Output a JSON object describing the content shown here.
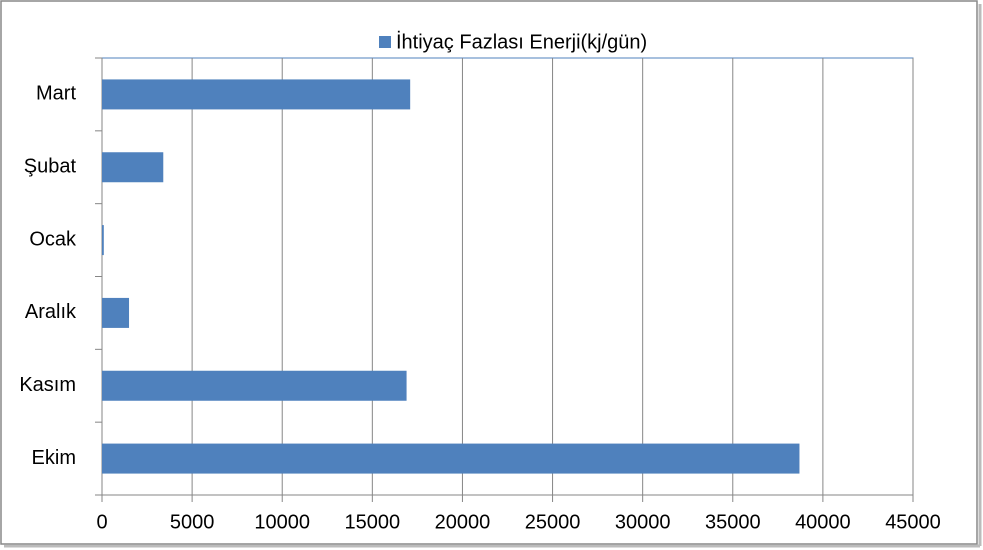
{
  "chart_data": {
    "type": "bar",
    "orientation": "horizontal",
    "categories": [
      "Ekim",
      "Kasım",
      "Aralık",
      "Ocak",
      "Şubat",
      "Mart"
    ],
    "series": [
      {
        "name": "İhtiyaç Fazlası Enerji(kj/gün)",
        "color": "#4f81bd",
        "values": [
          38700,
          16900,
          1500,
          100,
          3400,
          17100
        ]
      }
    ],
    "xlim": [
      0,
      45000
    ],
    "xticks": [
      0,
      5000,
      10000,
      15000,
      20000,
      25000,
      30000,
      35000,
      40000,
      45000
    ],
    "grid": true,
    "legend": "top"
  }
}
